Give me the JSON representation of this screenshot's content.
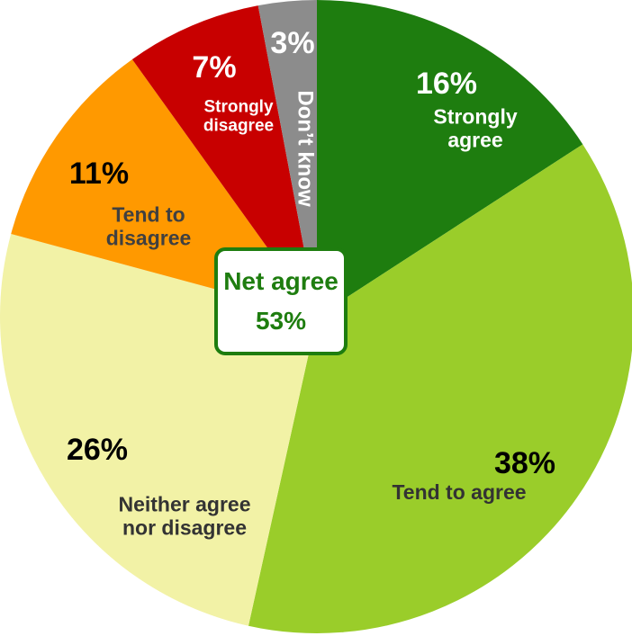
{
  "chart_data": {
    "type": "pie",
    "categories": [
      "Strongly agree",
      "Tend to agree",
      "Neither agree nor disagree",
      "Tend to disagree",
      "Strongly disagree",
      "Don’t know"
    ],
    "values": [
      16,
      38,
      26,
      11,
      7,
      3
    ],
    "value_labels": [
      "16%",
      "38%",
      "26%",
      "11%",
      "7%",
      "3%"
    ],
    "colors": [
      "#1e7d0f",
      "#9acd2a",
      "#f2f2a6",
      "#ff9900",
      "#c80000",
      "#8c8c8c"
    ],
    "annotation": {
      "text": "Net agree",
      "value": 53,
      "label": "53%"
    }
  }
}
